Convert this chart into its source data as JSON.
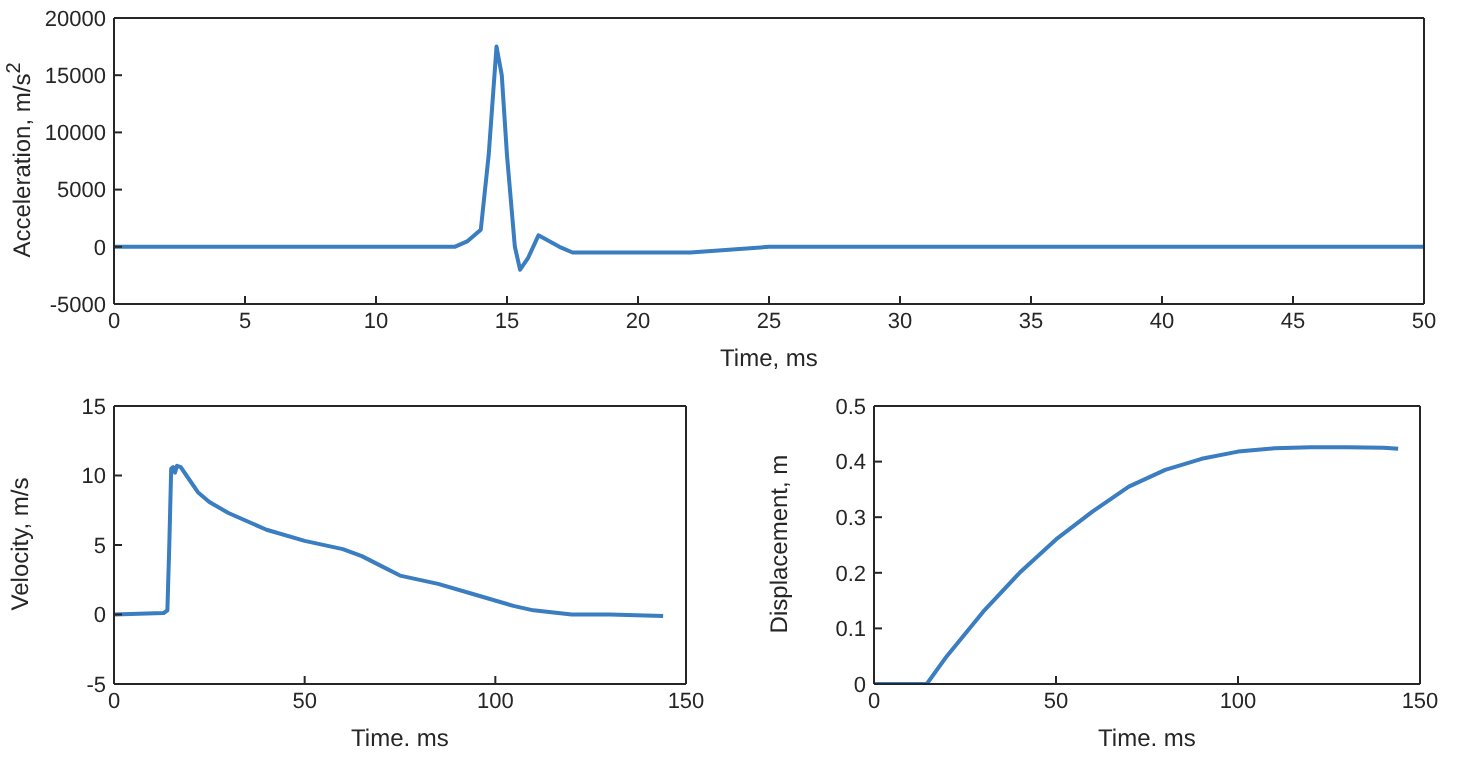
{
  "chart_data": [
    {
      "type": "line",
      "xlabel": "Time, ms",
      "ylabel": "Acceleration, m/s$^{2}$",
      "color": "#3a7dc1",
      "xlim": [
        0,
        50
      ],
      "xticks": [
        0,
        5,
        10,
        15,
        20,
        25,
        30,
        35,
        40,
        45,
        50
      ],
      "ylim": [
        -5000,
        20000
      ],
      "yticks": [
        -5000,
        0,
        5000,
        10000,
        15000,
        20000
      ],
      "grid": false,
      "legend": false,
      "x": [
        0,
        5,
        10,
        13,
        13.5,
        14,
        14.3,
        14.6,
        14.8,
        15,
        15.3,
        15.5,
        15.8,
        16.2,
        16.6,
        17,
        17.5,
        18,
        19,
        20,
        20.5,
        21,
        22,
        25,
        30,
        35,
        40,
        45,
        50
      ],
      "values": [
        0,
        0,
        0,
        0,
        500,
        1500,
        8000,
        17500,
        15000,
        8000,
        0,
        -2000,
        -1000,
        1000,
        500,
        0,
        -500,
        -500,
        -500,
        -500,
        -500,
        -500,
        -500,
        0,
        0,
        0,
        0,
        0,
        0
      ]
    },
    {
      "type": "line",
      "xlabel": "Time. ms",
      "ylabel": "Velocity, m/s",
      "color": "#3a7dc1",
      "xlim": [
        0,
        150
      ],
      "xticks": [
        0,
        50,
        100,
        150
      ],
      "ylim": [
        -5,
        15
      ],
      "yticks": [
        -5,
        0,
        5,
        10,
        15
      ],
      "grid": false,
      "legend": false,
      "x": [
        0,
        13,
        14,
        14.5,
        15,
        15.5,
        16,
        16.5,
        17.5,
        19,
        22,
        25,
        30,
        40,
        50,
        60,
        65,
        70,
        75,
        85,
        95,
        105,
        110,
        120,
        130,
        144
      ],
      "values": [
        0,
        0.1,
        0.3,
        5,
        10.5,
        10.6,
        10.2,
        10.7,
        10.6,
        10,
        8.8,
        8.1,
        7.3,
        6.1,
        5.3,
        4.7,
        4.2,
        3.5,
        2.8,
        2.2,
        1.4,
        0.6,
        0.3,
        0,
        0,
        -0.1
      ]
    },
    {
      "type": "line",
      "xlabel": "Time. ms",
      "ylabel": "Displacement, m",
      "color": "#3a7dc1",
      "xlim": [
        0,
        150
      ],
      "xticks": [
        0,
        50,
        100,
        150
      ],
      "ylim": [
        0,
        0.5
      ],
      "yticks": [
        0,
        0.1,
        0.2,
        0.3,
        0.4,
        0.5
      ],
      "grid": false,
      "legend": false,
      "x": [
        0,
        14.5,
        20,
        30,
        40,
        50,
        60,
        70,
        80,
        90,
        100,
        110,
        120,
        130,
        140,
        144
      ],
      "values": [
        0,
        0,
        0.05,
        0.13,
        0.2,
        0.26,
        0.31,
        0.355,
        0.385,
        0.405,
        0.418,
        0.424,
        0.426,
        0.426,
        0.425,
        0.423
      ]
    }
  ]
}
